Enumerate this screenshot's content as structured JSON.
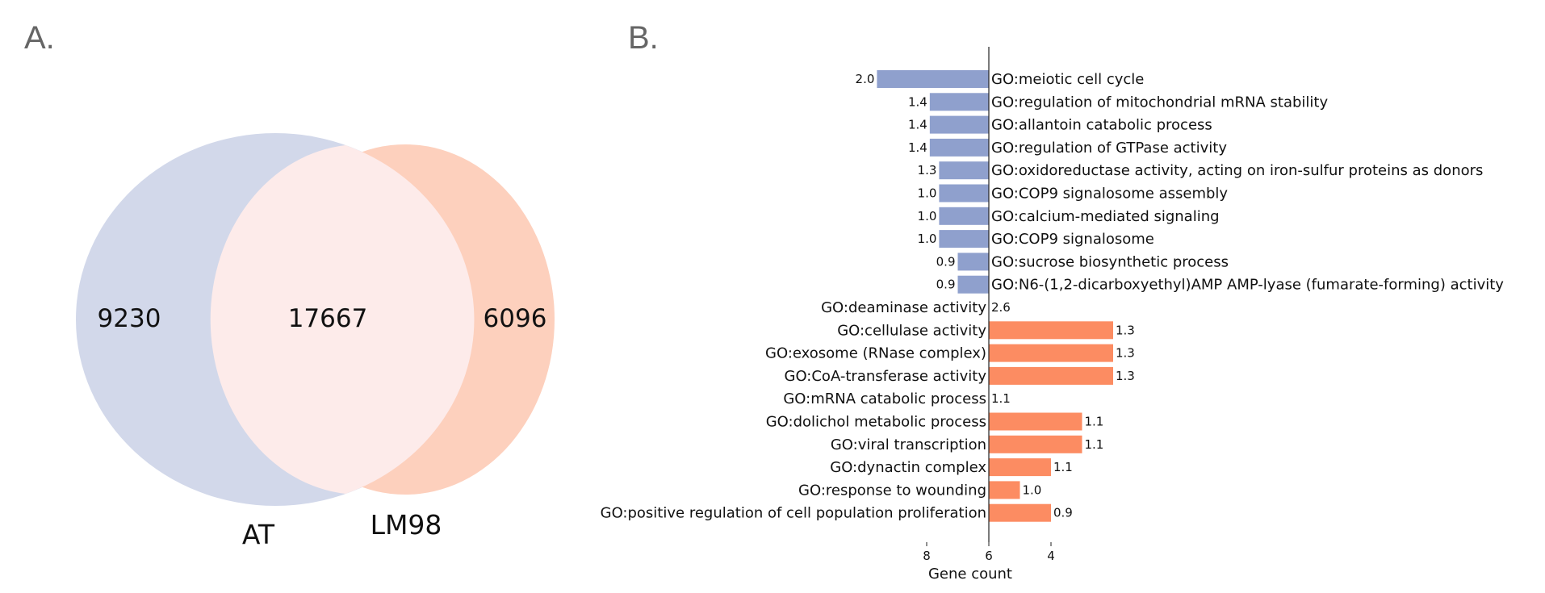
{
  "panels": {
    "a": "A.",
    "b": "B."
  },
  "colors": {
    "at": "#d2d8ea",
    "lm98": "#fdd0bd",
    "overlap": "#fdebea",
    "down_bar": "#8fa0cd",
    "up_bar": "#fc8c62",
    "text": "#111111",
    "panel_letter": "#666666"
  },
  "chart_data": [
    {
      "type": "venn",
      "sets": [
        {
          "name": "AT",
          "only": 9230
        },
        {
          "name": "LM98",
          "only": 6096
        }
      ],
      "intersection": 17667,
      "labels": {
        "at": "AT",
        "lm98": "LM98"
      },
      "counts": {
        "at_only": "9230",
        "both": "17667",
        "lm98_only": "6096"
      }
    },
    {
      "type": "bar",
      "orientation": "horizontal-diverging",
      "xlabel": "Gene count",
      "xticks": [
        "8",
        "6",
        "4"
      ],
      "categories": [
        "GO:meiotic cell cycle",
        "GO:regulation of mitochondrial mRNA stability",
        "GO:allantoin catabolic process",
        "GO:regulation of GTPase activity",
        "GO:oxidoreductase activity, acting on iron-sulfur proteins as donors",
        "GO:COP9 signalosome assembly",
        "GO:calcium-mediated signaling",
        "GO:COP9 signalosome",
        "GO:sucrose biosynthetic process",
        "GO:N6-(1,2-dicarboxyethyl)AMP AMP-lyase (fumarate-forming) activity",
        "GO:deaminase activity",
        "GO:cellulase activity",
        "GO:exosome (RNase complex)",
        "GO:CoA-transferase activity",
        "GO:mRNA catabolic process",
        "GO:dolichol metabolic process",
        "GO:viral transcription",
        "GO:dynactin complex",
        "GO:response to wounding",
        "GO:positive regulation of cell population proliferation"
      ],
      "direction": [
        "left",
        "left",
        "left",
        "left",
        "left",
        "left",
        "left",
        "left",
        "left",
        "left",
        "right",
        "right",
        "right",
        "right",
        "right",
        "right",
        "right",
        "right",
        "right",
        "right"
      ],
      "gene_counts": [
        9.6,
        7.9,
        7.9,
        7.9,
        7.6,
        7.6,
        7.6,
        7.6,
        7.0,
        7.0,
        6.0,
        2.0,
        2.0,
        2.0,
        6.0,
        3.0,
        3.0,
        4.0,
        5.0,
        4.0
      ],
      "values": [
        "2.0",
        "1.4",
        "1.4",
        "1.4",
        "1.3",
        "1.0",
        "1.0",
        "1.0",
        "0.9",
        "0.9",
        "2.6",
        "1.3",
        "1.3",
        "1.3",
        "1.1",
        "1.1",
        "1.1",
        "1.1",
        "1.0",
        "0.9"
      ]
    }
  ]
}
